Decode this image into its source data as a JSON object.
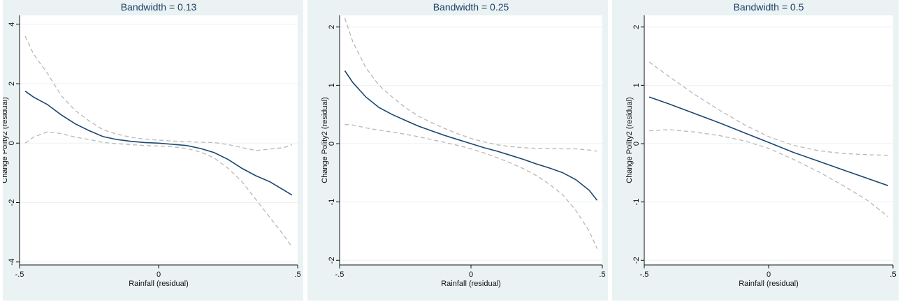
{
  "colors": {
    "panel_bg": "#eaf2f3",
    "plot_bg": "#ffffff",
    "title_text": "#1e3f66",
    "fit_line": "#1a476f",
    "ci_line": "#b8b8b8",
    "grid": "#eaf2f3"
  },
  "chart_data": [
    {
      "type": "line",
      "title": "Bandwidth = 0.13",
      "xlabel": "Rainfall (residual)",
      "ylabel": "Change Polity2 (residual)",
      "xlim": [
        -0.5,
        0.5
      ],
      "ylim": [
        -4.1,
        4.3
      ],
      "xticks": [
        -0.5,
        0,
        0.5
      ],
      "xtick_labels": [
        "-.5",
        "0",
        ".5"
      ],
      "yticks": [
        -4,
        -2,
        0,
        2,
        4
      ],
      "ytick_labels": [
        "-4",
        "-2",
        "0",
        "2",
        "4"
      ],
      "grid": true,
      "series": [
        {
          "role": "fit",
          "x": [
            -0.48,
            -0.45,
            -0.4,
            -0.35,
            -0.3,
            -0.25,
            -0.2,
            -0.15,
            -0.1,
            -0.05,
            0,
            0.05,
            0.1,
            0.15,
            0.2,
            0.25,
            0.3,
            0.35,
            0.4,
            0.45,
            0.48
          ],
          "y": [
            1.75,
            1.55,
            1.3,
            0.95,
            0.65,
            0.42,
            0.22,
            0.12,
            0.06,
            0.02,
            0.0,
            -0.04,
            -0.08,
            -0.18,
            -0.32,
            -0.55,
            -0.85,
            -1.1,
            -1.3,
            -1.58,
            -1.75
          ]
        },
        {
          "role": "ci-upper",
          "x": [
            -0.48,
            -0.45,
            -0.4,
            -0.35,
            -0.3,
            -0.25,
            -0.2,
            -0.15,
            -0.1,
            -0.05,
            0,
            0.05,
            0.1,
            0.15,
            0.2,
            0.25,
            0.3,
            0.35,
            0.4,
            0.45,
            0.48
          ],
          "y": [
            3.6,
            3.0,
            2.35,
            1.6,
            1.1,
            0.75,
            0.45,
            0.3,
            0.2,
            0.13,
            0.1,
            0.07,
            0.05,
            0.03,
            0.02,
            -0.05,
            -0.15,
            -0.25,
            -0.2,
            -0.15,
            -0.05
          ]
        },
        {
          "role": "ci-lower",
          "x": [
            -0.48,
            -0.45,
            -0.4,
            -0.35,
            -0.3,
            -0.25,
            -0.2,
            -0.15,
            -0.1,
            -0.05,
            0,
            0.05,
            0.1,
            0.15,
            0.2,
            0.25,
            0.3,
            0.35,
            0.4,
            0.45,
            0.48
          ],
          "y": [
            0.0,
            0.2,
            0.38,
            0.32,
            0.2,
            0.12,
            0.02,
            -0.02,
            -0.05,
            -0.08,
            -0.1,
            -0.12,
            -0.18,
            -0.3,
            -0.5,
            -0.85,
            -1.3,
            -1.9,
            -2.5,
            -3.1,
            -3.5
          ]
        }
      ]
    },
    {
      "type": "line",
      "title": "Bandwidth = 0.25",
      "xlabel": "Rainfall (residual)",
      "ylabel": "Change Polity2 (residual)",
      "xlim": [
        -0.5,
        0.5
      ],
      "ylim": [
        -2.08,
        2.2
      ],
      "xticks": [
        -0.5,
        0,
        0.5
      ],
      "xtick_labels": [
        "-.5",
        "0",
        ".5"
      ],
      "yticks": [
        -2,
        -1,
        0,
        1,
        2
      ],
      "ytick_labels": [
        "-2",
        "-1",
        "0",
        "1",
        "2"
      ],
      "grid": true,
      "series": [
        {
          "role": "fit",
          "x": [
            -0.48,
            -0.45,
            -0.4,
            -0.35,
            -0.3,
            -0.25,
            -0.2,
            -0.15,
            -0.1,
            -0.05,
            0,
            0.05,
            0.1,
            0.15,
            0.2,
            0.25,
            0.3,
            0.35,
            0.4,
            0.45,
            0.48
          ],
          "y": [
            1.25,
            1.05,
            0.8,
            0.62,
            0.5,
            0.4,
            0.3,
            0.22,
            0.14,
            0.07,
            0.0,
            -0.07,
            -0.13,
            -0.2,
            -0.27,
            -0.35,
            -0.42,
            -0.5,
            -0.62,
            -0.8,
            -0.97
          ]
        },
        {
          "role": "ci-upper",
          "x": [
            -0.48,
            -0.45,
            -0.4,
            -0.35,
            -0.3,
            -0.25,
            -0.2,
            -0.15,
            -0.1,
            -0.05,
            0,
            0.05,
            0.1,
            0.15,
            0.2,
            0.25,
            0.3,
            0.35,
            0.4,
            0.45,
            0.48
          ],
          "y": [
            2.15,
            1.75,
            1.3,
            1.0,
            0.8,
            0.62,
            0.47,
            0.36,
            0.26,
            0.17,
            0.09,
            0.03,
            -0.02,
            -0.05,
            -0.07,
            -0.08,
            -0.08,
            -0.09,
            -0.09,
            -0.11,
            -0.13
          ]
        },
        {
          "role": "ci-lower",
          "x": [
            -0.48,
            -0.45,
            -0.4,
            -0.35,
            -0.3,
            -0.25,
            -0.2,
            -0.15,
            -0.1,
            -0.05,
            0,
            0.05,
            0.1,
            0.15,
            0.2,
            0.25,
            0.3,
            0.35,
            0.4,
            0.45,
            0.48
          ],
          "y": [
            0.33,
            0.32,
            0.27,
            0.23,
            0.2,
            0.16,
            0.12,
            0.07,
            0.02,
            -0.03,
            -0.09,
            -0.16,
            -0.24,
            -0.33,
            -0.43,
            -0.55,
            -0.7,
            -0.88,
            -1.15,
            -1.5,
            -1.8
          ]
        }
      ]
    },
    {
      "type": "line",
      "title": "Bandwidth = 0.5",
      "xlabel": "Rainfall (residual)",
      "ylabel": "Change Polity2 (residual)",
      "xlim": [
        -0.5,
        0.5
      ],
      "ylim": [
        -2.08,
        2.2
      ],
      "xticks": [
        -0.5,
        0,
        0.5
      ],
      "xtick_labels": [
        "-.5",
        "0",
        ".5"
      ],
      "yticks": [
        -2,
        -1,
        0,
        1,
        2
      ],
      "ytick_labels": [
        "-2",
        "-1",
        "0",
        "1",
        "2"
      ],
      "grid": true,
      "series": [
        {
          "role": "fit",
          "x": [
            -0.48,
            -0.4,
            -0.3,
            -0.2,
            -0.1,
            0,
            0.1,
            0.2,
            0.3,
            0.4,
            0.48
          ],
          "y": [
            0.8,
            0.68,
            0.52,
            0.36,
            0.19,
            0.02,
            -0.15,
            -0.3,
            -0.45,
            -0.6,
            -0.72
          ]
        },
        {
          "role": "ci-upper",
          "x": [
            -0.48,
            -0.4,
            -0.3,
            -0.2,
            -0.1,
            0,
            0.1,
            0.2,
            0.3,
            0.4,
            0.48
          ],
          "y": [
            1.4,
            1.15,
            0.85,
            0.58,
            0.33,
            0.12,
            -0.03,
            -0.12,
            -0.17,
            -0.19,
            -0.2
          ]
        },
        {
          "role": "ci-lower",
          "x": [
            -0.48,
            -0.4,
            -0.3,
            -0.2,
            -0.1,
            0,
            0.1,
            0.2,
            0.3,
            0.4,
            0.48
          ],
          "y": [
            0.22,
            0.24,
            0.2,
            0.14,
            0.05,
            -0.08,
            -0.27,
            -0.48,
            -0.72,
            -0.98,
            -1.25
          ]
        }
      ]
    }
  ]
}
